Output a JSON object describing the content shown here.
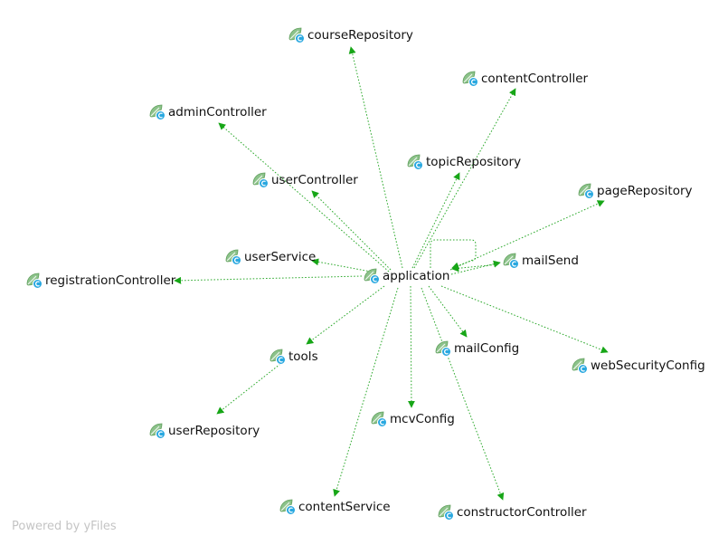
{
  "footer": "Powered by yFiles",
  "colors": {
    "edge": "#2eaa2e",
    "arrow": "#17a617",
    "icon_leaf": "#8cc28a",
    "icon_leaf_dark": "#5f9f5c",
    "icon_badge": "#29a8e0"
  },
  "icon": "class-icon",
  "root": "application",
  "nodes": [
    {
      "id": "application",
      "label": "application"
    },
    {
      "id": "courseRepository",
      "label": "courseRepository"
    },
    {
      "id": "contentController",
      "label": "contentController"
    },
    {
      "id": "adminController",
      "label": "adminController"
    },
    {
      "id": "topicRepository",
      "label": "topicRepository"
    },
    {
      "id": "userController",
      "label": "userController"
    },
    {
      "id": "pageRepository",
      "label": "pageRepository"
    },
    {
      "id": "userService",
      "label": "userService"
    },
    {
      "id": "mailSend",
      "label": "mailSend"
    },
    {
      "id": "registrationController",
      "label": "registrationController"
    },
    {
      "id": "tools",
      "label": "tools"
    },
    {
      "id": "mailConfig",
      "label": "mailConfig"
    },
    {
      "id": "webSecurityConfig",
      "label": "webSecurityConfig"
    },
    {
      "id": "mcvConfig",
      "label": "mcvConfig"
    },
    {
      "id": "userRepository",
      "label": "userRepository"
    },
    {
      "id": "contentService",
      "label": "contentService"
    },
    {
      "id": "constructorController",
      "label": "constructorController"
    }
  ],
  "edges": [
    {
      "from": "application",
      "to": "courseRepository"
    },
    {
      "from": "application",
      "to": "contentController"
    },
    {
      "from": "application",
      "to": "adminController"
    },
    {
      "from": "application",
      "to": "topicRepository"
    },
    {
      "from": "application",
      "to": "userController"
    },
    {
      "from": "application",
      "to": "pageRepository"
    },
    {
      "from": "application",
      "to": "userService"
    },
    {
      "from": "application",
      "to": "mailSend"
    },
    {
      "from": "mailSend",
      "to": "application"
    },
    {
      "from": "application",
      "to": "application"
    },
    {
      "from": "application",
      "to": "registrationController"
    },
    {
      "from": "application",
      "to": "tools"
    },
    {
      "from": "application",
      "to": "mailConfig"
    },
    {
      "from": "application",
      "to": "webSecurityConfig"
    },
    {
      "from": "application",
      "to": "mcvConfig"
    },
    {
      "from": "tools",
      "to": "userRepository"
    },
    {
      "from": "application",
      "to": "contentService"
    },
    {
      "from": "application",
      "to": "constructorController"
    }
  ]
}
